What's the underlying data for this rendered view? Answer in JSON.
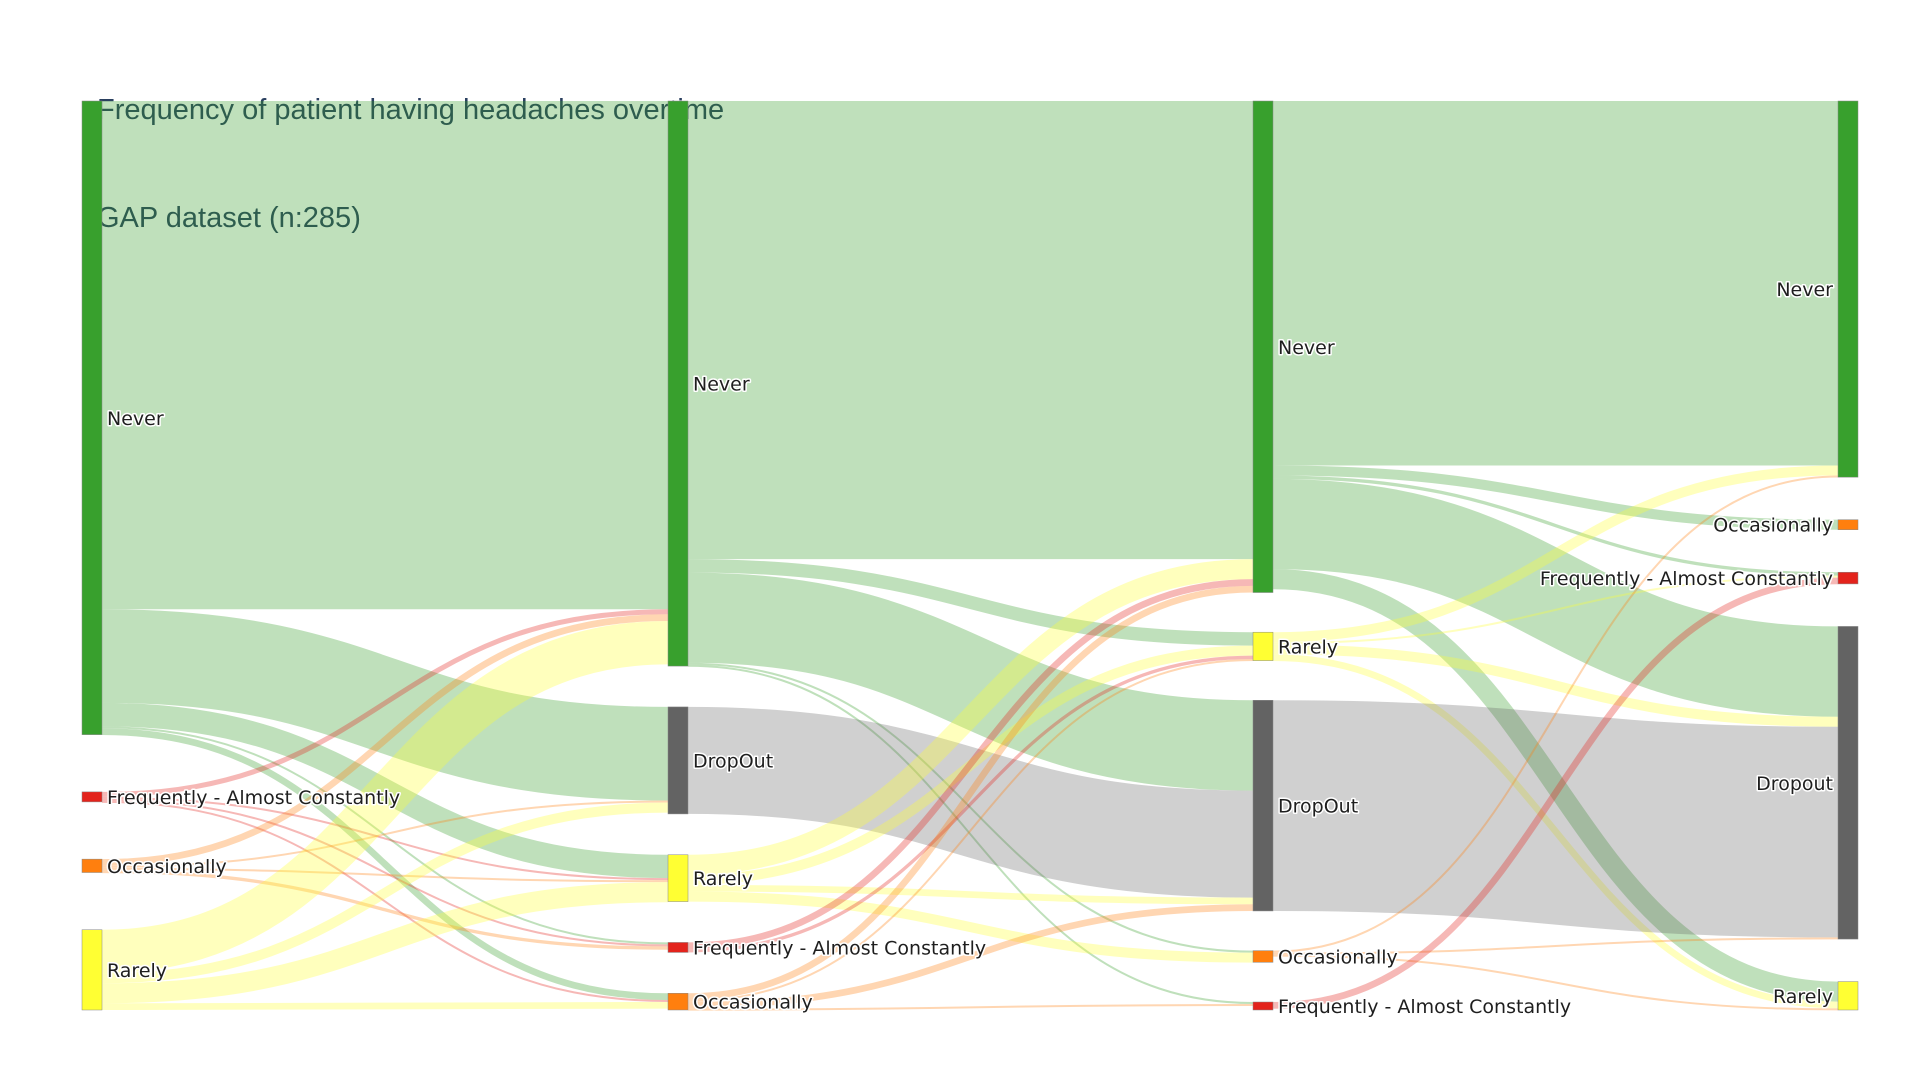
{
  "title": "Frequency of patient having headaches overtime",
  "subtitle": "GAP dataset (n:285)",
  "colors": {
    "Never": "#38a02d",
    "Rarely": "#ffff33",
    "Occasionally": "#ff7f0e",
    "Frequently - Almost Constantly": "#e3231c",
    "DropOut": "#636363",
    "Dropout": "#636363"
  },
  "chart_data": {
    "type": "sankey",
    "title": "Frequency of patient having headaches overtime",
    "subtitle": "GAP dataset (n:285)",
    "stages": [
      [
        "Never",
        "Frequently - Almost Constantly",
        "Occasionally",
        "Rarely"
      ],
      [
        "Never",
        "DropOut",
        "Rarely",
        "Frequently - Almost Constantly",
        "Occasionally"
      ],
      [
        "Never",
        "Rarely",
        "DropOut",
        "Occasionally",
        "Frequently - Almost Constantly"
      ],
      [
        "Never",
        "Occasionally",
        "Frequently - Almost Constantly",
        "Dropout",
        "Rarely"
      ]
    ],
    "node_label_side": [
      "right",
      "right",
      "right",
      "left"
    ],
    "links": [
      {
        "from": [
          0,
          "Never"
        ],
        "to": [
          1,
          "Never"
        ],
        "value": 152
      },
      {
        "from": [
          0,
          "Never"
        ],
        "to": [
          1,
          "DropOut"
        ],
        "value": 28
      },
      {
        "from": [
          0,
          "Never"
        ],
        "to": [
          1,
          "Rarely"
        ],
        "value": 7
      },
      {
        "from": [
          0,
          "Never"
        ],
        "to": [
          1,
          "Frequently - Almost Constantly"
        ],
        "value": 0.5
      },
      {
        "from": [
          0,
          "Never"
        ],
        "to": [
          1,
          "Occasionally"
        ],
        "value": 2
      },
      {
        "from": [
          0,
          "Frequently - Almost Constantly"
        ],
        "to": [
          1,
          "Never"
        ],
        "value": 1.5
      },
      {
        "from": [
          0,
          "Frequently - Almost Constantly"
        ],
        "to": [
          1,
          "Rarely"
        ],
        "value": 0.5
      },
      {
        "from": [
          0,
          "Frequently - Almost Constantly"
        ],
        "to": [
          1,
          "Frequently - Almost Constantly"
        ],
        "value": 0.5
      },
      {
        "from": [
          0,
          "Frequently - Almost Constantly"
        ],
        "to": [
          1,
          "Occasionally"
        ],
        "value": 0.5
      },
      {
        "from": [
          0,
          "Occasionally"
        ],
        "to": [
          1,
          "Never"
        ],
        "value": 2
      },
      {
        "from": [
          0,
          "Occasionally"
        ],
        "to": [
          1,
          "DropOut"
        ],
        "value": 0.5
      },
      {
        "from": [
          0,
          "Occasionally"
        ],
        "to": [
          1,
          "Rarely"
        ],
        "value": 0.5
      },
      {
        "from": [
          0,
          "Occasionally"
        ],
        "to": [
          1,
          "Frequently - Almost Constantly"
        ],
        "value": 1
      },
      {
        "from": [
          0,
          "Rarely"
        ],
        "to": [
          1,
          "Never"
        ],
        "value": 13
      },
      {
        "from": [
          0,
          "Rarely"
        ],
        "to": [
          1,
          "DropOut"
        ],
        "value": 3
      },
      {
        "from": [
          0,
          "Rarely"
        ],
        "to": [
          1,
          "Rarely"
        ],
        "value": 6
      },
      {
        "from": [
          0,
          "Rarely"
        ],
        "to": [
          1,
          "Occasionally"
        ],
        "value": 2
      },
      {
        "from": [
          1,
          "Never"
        ],
        "to": [
          2,
          "Never"
        ],
        "value": 137
      },
      {
        "from": [
          1,
          "Never"
        ],
        "to": [
          2,
          "Rarely"
        ],
        "value": 4
      },
      {
        "from": [
          1,
          "Never"
        ],
        "to": [
          2,
          "DropOut"
        ],
        "value": 27
      },
      {
        "from": [
          1,
          "Never"
        ],
        "to": [
          2,
          "Occasionally"
        ],
        "value": 0.5
      },
      {
        "from": [
          1,
          "Never"
        ],
        "to": [
          2,
          "Frequently - Almost Constantly"
        ],
        "value": 0.5
      },
      {
        "from": [
          1,
          "DropOut"
        ],
        "to": [
          2,
          "DropOut"
        ],
        "value": 32
      },
      {
        "from": [
          1,
          "Rarely"
        ],
        "to": [
          2,
          "Never"
        ],
        "value": 6
      },
      {
        "from": [
          1,
          "Rarely"
        ],
        "to": [
          2,
          "Rarely"
        ],
        "value": 3
      },
      {
        "from": [
          1,
          "Rarely"
        ],
        "to": [
          2,
          "DropOut"
        ],
        "value": 2
      },
      {
        "from": [
          1,
          "Rarely"
        ],
        "to": [
          2,
          "Occasionally"
        ],
        "value": 3
      },
      {
        "from": [
          1,
          "Frequently - Almost Constantly"
        ],
        "to": [
          2,
          "Never"
        ],
        "value": 2
      },
      {
        "from": [
          1,
          "Frequently - Almost Constantly"
        ],
        "to": [
          2,
          "Rarely"
        ],
        "value": 1
      },
      {
        "from": [
          1,
          "Occasionally"
        ],
        "to": [
          2,
          "Never"
        ],
        "value": 2
      },
      {
        "from": [
          1,
          "Occasionally"
        ],
        "to": [
          2,
          "Rarely"
        ],
        "value": 0.5
      },
      {
        "from": [
          1,
          "Occasionally"
        ],
        "to": [
          2,
          "DropOut"
        ],
        "value": 2
      },
      {
        "from": [
          1,
          "Occasionally"
        ],
        "to": [
          2,
          "Frequently - Almost Constantly"
        ],
        "value": 0.5
      },
      {
        "from": [
          2,
          "Never"
        ],
        "to": [
          3,
          "Never"
        ],
        "value": 109
      },
      {
        "from": [
          2,
          "Never"
        ],
        "to": [
          3,
          "Occasionally"
        ],
        "value": 3
      },
      {
        "from": [
          2,
          "Never"
        ],
        "to": [
          3,
          "Frequently - Almost Constantly"
        ],
        "value": 1
      },
      {
        "from": [
          2,
          "Never"
        ],
        "to": [
          3,
          "Dropout"
        ],
        "value": 27
      },
      {
        "from": [
          2,
          "Never"
        ],
        "to": [
          3,
          "Rarely"
        ],
        "value": 6
      },
      {
        "from": [
          2,
          "Rarely"
        ],
        "to": [
          3,
          "Never"
        ],
        "value": 3
      },
      {
        "from": [
          2,
          "Rarely"
        ],
        "to": [
          3,
          "Frequently - Almost Constantly"
        ],
        "value": 0.5
      },
      {
        "from": [
          2,
          "Rarely"
        ],
        "to": [
          3,
          "Dropout"
        ],
        "value": 3
      },
      {
        "from": [
          2,
          "Rarely"
        ],
        "to": [
          3,
          "Rarely"
        ],
        "value": 2
      },
      {
        "from": [
          2,
          "DropOut"
        ],
        "to": [
          3,
          "Dropout"
        ],
        "value": 63
      },
      {
        "from": [
          2,
          "Occasionally"
        ],
        "to": [
          3,
          "Never"
        ],
        "value": 0.5
      },
      {
        "from": [
          2,
          "Occasionally"
        ],
        "to": [
          3,
          "Dropout"
        ],
        "value": 0.5
      },
      {
        "from": [
          2,
          "Occasionally"
        ],
        "to": [
          3,
          "Rarely"
        ],
        "value": 0.5
      },
      {
        "from": [
          2,
          "Frequently - Almost Constantly"
        ],
        "to": [
          3,
          "Frequently - Almost Constantly"
        ],
        "value": 2
      }
    ]
  }
}
